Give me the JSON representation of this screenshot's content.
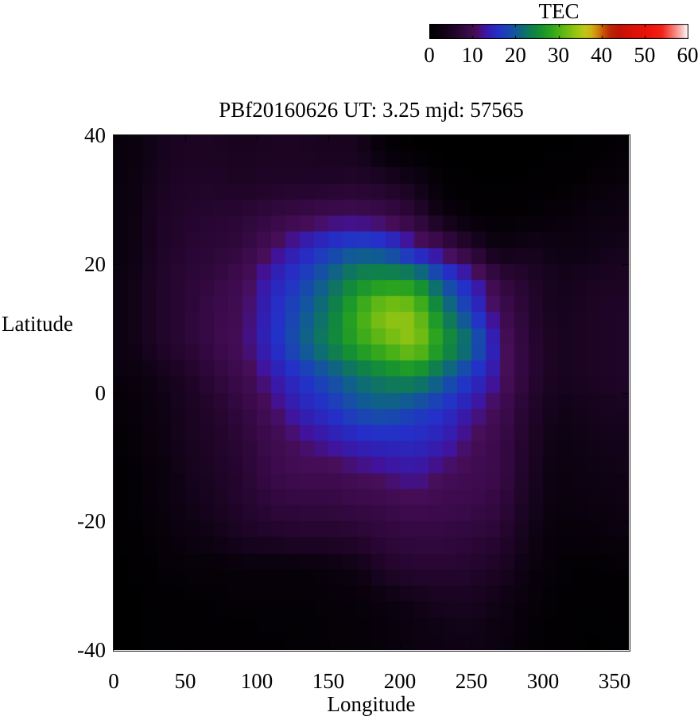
{
  "title": "PBf20160626  UT: 3.25  mjd: 57565",
  "axes": {
    "xlabel": "Longitude",
    "ylabel": "Latitude",
    "x_ticks": [
      0,
      50,
      100,
      150,
      200,
      250,
      300,
      350
    ],
    "y_ticks": [
      40,
      20,
      0,
      -20,
      -40
    ],
    "xlim": [
      0,
      360
    ],
    "ylim": [
      -40,
      40
    ]
  },
  "colorbar": {
    "label": "TEC",
    "min": 0,
    "max": 60,
    "ticks": [
      0,
      10,
      20,
      30,
      40,
      50,
      60
    ]
  },
  "chart_data": {
    "type": "heatmap",
    "title": "PBf20160626  UT: 3.25  mjd: 57565",
    "xlabel": "Longitude",
    "ylabel": "Latitude",
    "value_label": "TEC",
    "xlim": [
      0,
      360
    ],
    "ylim": [
      -40,
      40
    ],
    "value_range": [
      0,
      60
    ],
    "grid_on": false,
    "legend": "top-right colorbar",
    "lon_centers": [
      10,
      30,
      50,
      70,
      90,
      110,
      130,
      150,
      170,
      190,
      210,
      230,
      250,
      270,
      290,
      310,
      330,
      350
    ],
    "lat_centers": [
      37.5,
      32.5,
      27.5,
      22.5,
      17.5,
      12.5,
      7.5,
      2.5,
      -2.5,
      -7.5,
      -12.5,
      -17.5,
      -22.5,
      -27.5,
      -32.5,
      -37.5
    ],
    "values": [
      [
        2.0,
        4.0,
        5.0,
        5.0,
        4.5,
        5.0,
        5.0,
        4.5,
        4.5,
        1.0,
        0.2,
        0.15,
        0.15,
        0.15,
        0.15,
        0.2,
        0.3,
        0.8
      ],
      [
        2.2,
        4.5,
        5.5,
        5.5,
        5.0,
        5.5,
        5.5,
        5.5,
        6.0,
        5.5,
        4.0,
        0.5,
        0.3,
        0.2,
        0.3,
        0.5,
        1.0,
        2.0
      ],
      [
        2.5,
        5.0,
        6.0,
        6.5,
        7.0,
        8.0,
        9.0,
        10.0,
        10.0,
        9.0,
        7.0,
        3.0,
        0.8,
        0.5,
        1.0,
        1.5,
        2.5,
        3.0
      ],
      [
        2.5,
        5.0,
        6.5,
        7.0,
        8.0,
        11.0,
        14.0,
        17.0,
        19.0,
        18.0,
        13.0,
        10.0,
        6.0,
        2.5,
        4.0,
        3.0,
        3.0,
        4.0
      ],
      [
        3.0,
        5.5,
        7.0,
        8.0,
        10.0,
        14.0,
        17.0,
        21.0,
        25.0,
        26.0,
        26.0,
        19.0,
        14.0,
        8.0,
        6.0,
        4.0,
        4.5,
        5.0
      ],
      [
        3.0,
        5.5,
        7.0,
        9.0,
        10.5,
        15.0,
        19.0,
        23.0,
        29.0,
        34.0,
        33.0,
        24.0,
        17.0,
        10.0,
        6.5,
        4.0,
        5.0,
        5.5
      ],
      [
        3.0,
        5.5,
        7.0,
        9.0,
        11.0,
        15.0,
        20.0,
        24.0,
        28.0,
        31.0,
        34.0,
        27.0,
        22.0,
        12.0,
        7.0,
        4.5,
        5.0,
        5.5
      ],
      [
        2.0,
        3.5,
        5.0,
        7.5,
        9.5,
        13.0,
        16.0,
        19.0,
        22.0,
        24.0,
        25.0,
        21.0,
        16.0,
        12.0,
        7.0,
        4.5,
        5.0,
        5.5
      ],
      [
        1.2,
        2.8,
        4.5,
        6.0,
        8.0,
        11.0,
        14.0,
        16.0,
        19.0,
        20.0,
        18.0,
        16.0,
        13.0,
        10.0,
        6.0,
        3.5,
        4.0,
        4.5
      ],
      [
        0.8,
        2.5,
        4.5,
        5.5,
        7.0,
        9.5,
        11.5,
        13.0,
        14.5,
        15.0,
        15.0,
        14.0,
        11.0,
        9.0,
        5.5,
        3.0,
        3.5,
        4.0
      ],
      [
        0.6,
        2.0,
        4.0,
        5.0,
        6.5,
        9.0,
        10.0,
        10.0,
        11.0,
        12.0,
        13.0,
        11.0,
        10.0,
        9.0,
        5.0,
        2.5,
        3.0,
        3.5
      ],
      [
        0.5,
        1.8,
        3.5,
        4.5,
        6.0,
        7.5,
        8.0,
        8.0,
        8.5,
        9.0,
        10.0,
        9.5,
        9.0,
        8.0,
        4.5,
        2.0,
        2.5,
        3.0
      ],
      [
        0.3,
        1.2,
        2.5,
        3.5,
        5.0,
        5.5,
        6.0,
        6.0,
        6.5,
        7.5,
        8.0,
        8.0,
        7.5,
        6.5,
        3.5,
        1.5,
        1.5,
        2.0
      ],
      [
        0.2,
        0.8,
        1.2,
        1.2,
        1.5,
        1.5,
        1.5,
        2.0,
        3.0,
        5.5,
        6.5,
        6.5,
        6.0,
        5.0,
        2.5,
        1.0,
        0.5,
        0.8
      ],
      [
        0.1,
        0.4,
        0.7,
        0.8,
        1.0,
        1.0,
        1.0,
        1.2,
        1.5,
        2.5,
        3.5,
        4.5,
        4.5,
        3.5,
        1.5,
        0.7,
        0.3,
        0.4
      ],
      [
        0.1,
        0.3,
        0.4,
        0.5,
        0.6,
        0.7,
        0.8,
        1.0,
        1.2,
        1.8,
        2.5,
        3.2,
        3.5,
        2.5,
        1.0,
        0.4,
        0.2,
        0.3
      ]
    ],
    "render_cell": {
      "lon_step": 10,
      "lat_step": 2.5
    },
    "palette_stops": [
      [
        0,
        "#000000"
      ],
      [
        3,
        "#0d0212"
      ],
      [
        6,
        "#23052c"
      ],
      [
        9,
        "#3a0a4a"
      ],
      [
        11,
        "#470e59"
      ],
      [
        12.5,
        "#41139b"
      ],
      [
        14,
        "#3020b4"
      ],
      [
        16,
        "#2430c8"
      ],
      [
        18,
        "#1a44b4"
      ],
      [
        20,
        "#115a96"
      ],
      [
        22,
        "#0e6f6e"
      ],
      [
        24,
        "#108148"
      ],
      [
        26,
        "#17932f"
      ],
      [
        28,
        "#2ba31f"
      ],
      [
        30,
        "#4cb117"
      ],
      [
        32,
        "#72bc13"
      ],
      [
        34,
        "#9ac513"
      ],
      [
        36,
        "#bcc815"
      ],
      [
        37.5,
        "#cdb312"
      ],
      [
        39,
        "#d1830c"
      ],
      [
        40.5,
        "#c64f07"
      ],
      [
        42,
        "#b92605"
      ],
      [
        44,
        "#c01206"
      ],
      [
        47,
        "#da1107"
      ],
      [
        51,
        "#ec1309"
      ],
      [
        54,
        "#f3241a"
      ],
      [
        56.5,
        "#f4766e"
      ],
      [
        58.5,
        "#f9bdb9"
      ],
      [
        60,
        "#ffffff"
      ]
    ]
  },
  "colors": {
    "background": "#ffffff",
    "text": "#000000",
    "axis": "#1a1a1a"
  }
}
